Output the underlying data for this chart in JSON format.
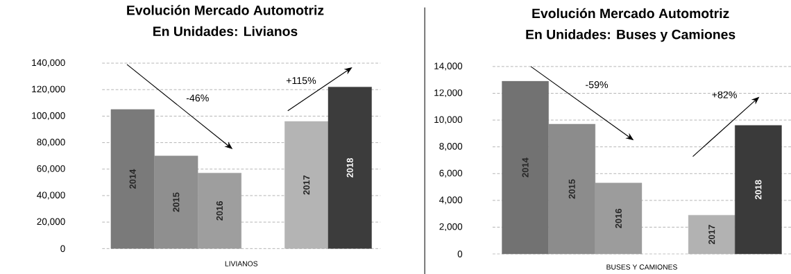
{
  "chart_data": [
    {
      "type": "bar",
      "title": "Evolución Mercado Automotriz",
      "subtitle": "En Unidades: Livianos",
      "categories": [
        "LIVIANOS"
      ],
      "series": [
        {
          "name": "2014",
          "color": "#7a7a7a",
          "values": [
            105000
          ]
        },
        {
          "name": "2015",
          "color": "#8f8f8f",
          "values": [
            70000
          ]
        },
        {
          "name": "2016",
          "color": "#9e9e9e",
          "values": [
            57000
          ]
        },
        {
          "values": [
            null
          ]
        },
        {
          "name": "2017",
          "color": "#b4b4b4",
          "values": [
            96000
          ]
        },
        {
          "name": "2018",
          "color": "#3c3c3c",
          "values": [
            122000
          ]
        }
      ],
      "ylim": [
        0,
        140000
      ],
      "yticks": [
        0,
        {
          "value": 20000,
          "label": "20,000"
        },
        {
          "value": 40000,
          "label": "40,000"
        },
        {
          "value": 60000,
          "label": "60,000"
        },
        {
          "value": 80000,
          "label": "80,000"
        },
        {
          "value": 100000,
          "label": "100,000"
        },
        {
          "value": 120000,
          "label": "120,000"
        },
        {
          "value": 140000,
          "label": "140,000"
        }
      ],
      "grid": "y",
      "annotations": [
        "-46%",
        "+115%"
      ]
    },
    {
      "type": "bar",
      "title": "Evolución Mercado Automotriz",
      "subtitle": "En Unidades: Buses y Camiones",
      "categories": [
        "BUSES Y CAMIONES"
      ],
      "series": [
        {
          "name": "2014",
          "color": "#727272",
          "values": [
            12900
          ]
        },
        {
          "name": "2015",
          "color": "#8c8c8c",
          "values": [
            9700
          ]
        },
        {
          "name": "2016",
          "color": "#9c9c9c",
          "values": [
            5300
          ]
        },
        {
          "values": [
            null
          ]
        },
        {
          "name": "2017",
          "color": "#b2b2b2",
          "values": [
            2900
          ]
        },
        {
          "name": "2018",
          "color": "#3a3a3a",
          "values": [
            9600
          ]
        }
      ],
      "ylim": [
        0,
        14000
      ],
      "yticks": [
        0,
        {
          "value": 2000,
          "label": "2,000"
        },
        {
          "value": 4000,
          "label": "4,000"
        },
        {
          "value": 6000,
          "label": "6,000"
        },
        {
          "value": 8000,
          "label": "8,000"
        },
        {
          "value": 10000,
          "label": "10,000"
        },
        {
          "value": 12000,
          "label": "12,000"
        },
        {
          "value": 14000,
          "label": "14,000"
        }
      ],
      "grid": "y",
      "annotations": [
        "-59%",
        "+82%"
      ]
    }
  ]
}
